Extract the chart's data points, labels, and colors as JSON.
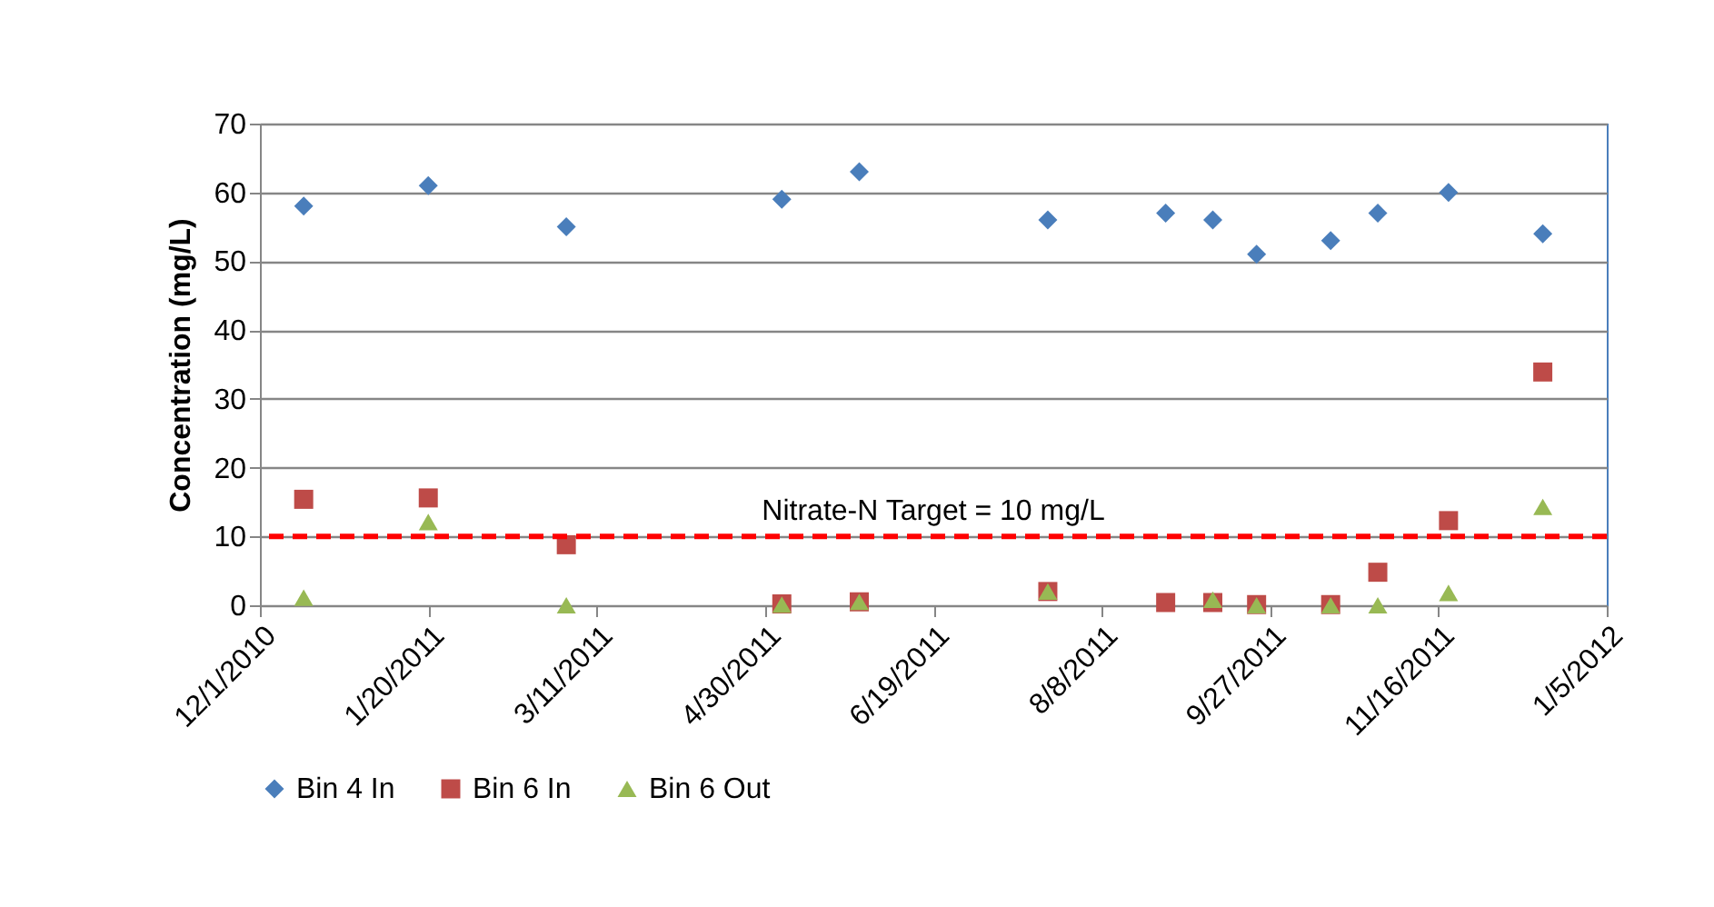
{
  "chart_data": {
    "type": "scatter",
    "ylabel": "Concentration (mg/L)",
    "x": [
      "2010-12-14",
      "2011-01-20",
      "2011-03-02",
      "2011-05-05",
      "2011-05-28",
      "2011-07-23",
      "2011-08-27",
      "2011-09-10",
      "2011-09-23",
      "2011-10-15",
      "2011-10-29",
      "2011-11-19",
      "2011-12-17"
    ],
    "series": [
      {
        "name": "Bin 4 In",
        "color": "#4a7ebb",
        "marker": "diamond",
        "values": [
          58,
          61,
          55,
          59,
          63,
          56,
          57,
          56,
          51,
          53,
          57,
          60,
          54
        ]
      },
      {
        "name": "Bin 6 In",
        "color": "#be4b48",
        "marker": "square",
        "values": [
          15.4,
          15.6,
          8.8,
          0.2,
          0.5,
          2.0,
          0.4,
          0.4,
          0.1,
          0.1,
          4.8,
          12.3,
          33.9
        ]
      },
      {
        "name": "Bin 6 Out",
        "color": "#98b954",
        "marker": "triangle",
        "values": [
          1.1,
          12.1,
          0,
          0.1,
          0.5,
          2.0,
          null,
          0.8,
          0,
          0,
          0,
          1.8,
          14.3
        ]
      }
    ],
    "xlim": [
      "2010-12-01",
      "2012-01-05"
    ],
    "xticks": [
      {
        "value": "2010-12-01",
        "label": "12/1/2010"
      },
      {
        "value": "2011-01-20",
        "label": "1/20/2011"
      },
      {
        "value": "2011-03-11",
        "label": "3/11/2011"
      },
      {
        "value": "2011-04-30",
        "label": "4/30/2011"
      },
      {
        "value": "2011-06-19",
        "label": "6/19/2011"
      },
      {
        "value": "2011-08-08",
        "label": "8/8/2011"
      },
      {
        "value": "2011-09-27",
        "label": "9/27/2011"
      },
      {
        "value": "2011-11-16",
        "label": "11/16/2011"
      },
      {
        "value": "2012-01-05",
        "label": "1/5/2012"
      }
    ],
    "ylim": [
      0,
      70
    ],
    "yticks": [
      0,
      10,
      20,
      30,
      40,
      50,
      60,
      70
    ],
    "ref_lines": [
      {
        "axis": "y",
        "value": 10,
        "label": "Nitrate-N Target = 10 mg/L",
        "color": "#ff0000",
        "line_style": "dashed"
      }
    ],
    "grid": "y",
    "legend": "bottom"
  }
}
